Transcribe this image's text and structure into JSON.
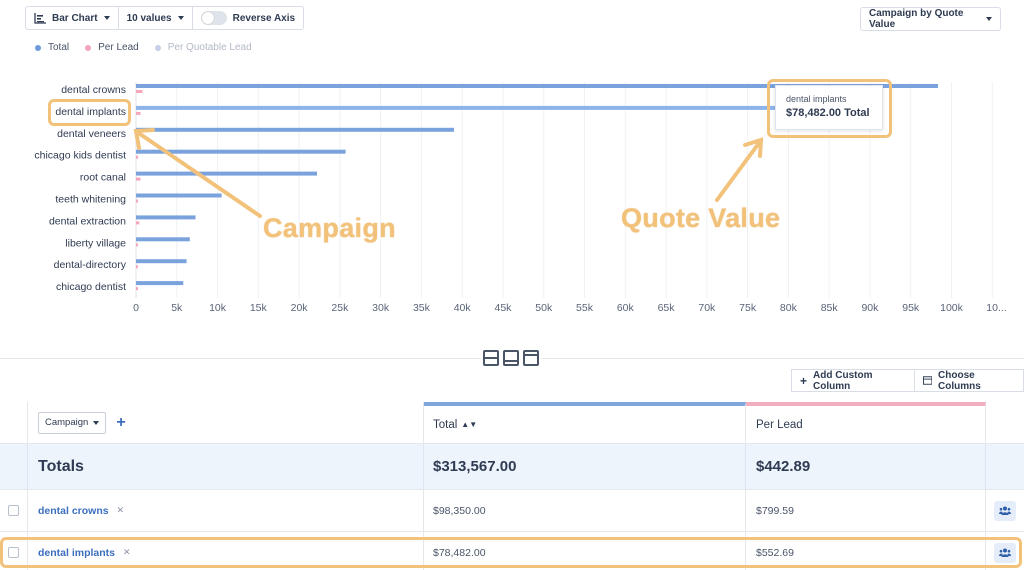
{
  "toolbar": {
    "chart_type": "Bar Chart",
    "values_count": "10 values",
    "reverse_axis": "Reverse Axis",
    "grouping_select": "Campaign by Quote Value"
  },
  "legend": [
    {
      "label": "Total",
      "color": "#6f9ad8",
      "text_color": "#4a5568"
    },
    {
      "label": "Per Lead",
      "color": "#f1a2b8",
      "text_color": "#4a5568"
    },
    {
      "label": "Per Quotable Lead",
      "color": "#c9cde6",
      "text_color": "#b3b9c6"
    }
  ],
  "colors": {
    "total": "#7aa3de",
    "per_lead": "#f4a7bb",
    "annotation": "#f2c27b"
  },
  "chart_data": {
    "type": "bar",
    "orientation": "horizontal",
    "categories": [
      "dental crowns",
      "dental implants",
      "dental veneers",
      "chicago kids dentist",
      "root canal",
      "teeth whitening",
      "dental extraction",
      "liberty village",
      "dental-directory",
      "chicago dentist"
    ],
    "series": [
      {
        "name": "Total",
        "values": [
          98350,
          78482,
          39000,
          25700,
          22200,
          10500,
          7300,
          6600,
          6200,
          5800
        ]
      },
      {
        "name": "Per Lead",
        "values": [
          799.59,
          552.69,
          300,
          250,
          550,
          150,
          400,
          150,
          100,
          100
        ]
      }
    ],
    "x_ticks": [
      "0",
      "5k",
      "10k",
      "15k",
      "20k",
      "25k",
      "30k",
      "35k",
      "40k",
      "45k",
      "50k",
      "55k",
      "60k",
      "65k",
      "70k",
      "75k",
      "80k",
      "85k",
      "90k",
      "95k",
      "100k",
      "10..."
    ],
    "xlim": [
      0,
      105000
    ],
    "grid": true,
    "legend_position": "top-left"
  },
  "tooltip": {
    "campaign": "dental implants",
    "value": "$78,482.00 Total"
  },
  "annotations": {
    "campaign": "Campaign",
    "quote_value": "Quote Value"
  },
  "table_actions": {
    "add_column": "Add Custom Column",
    "choose_columns": "Choose Columns"
  },
  "table": {
    "campaign_select": "Campaign",
    "headers": {
      "total": "Total",
      "per_lead": "Per Lead"
    },
    "totals": {
      "label": "Totals",
      "total": "$313,567.00",
      "per_lead": "$442.89"
    },
    "rows": [
      {
        "campaign": "dental crowns",
        "total": "$98,350.00",
        "per_lead": "$799.59"
      },
      {
        "campaign": "dental implants",
        "total": "$78,482.00",
        "per_lead": "$552.69"
      }
    ]
  }
}
